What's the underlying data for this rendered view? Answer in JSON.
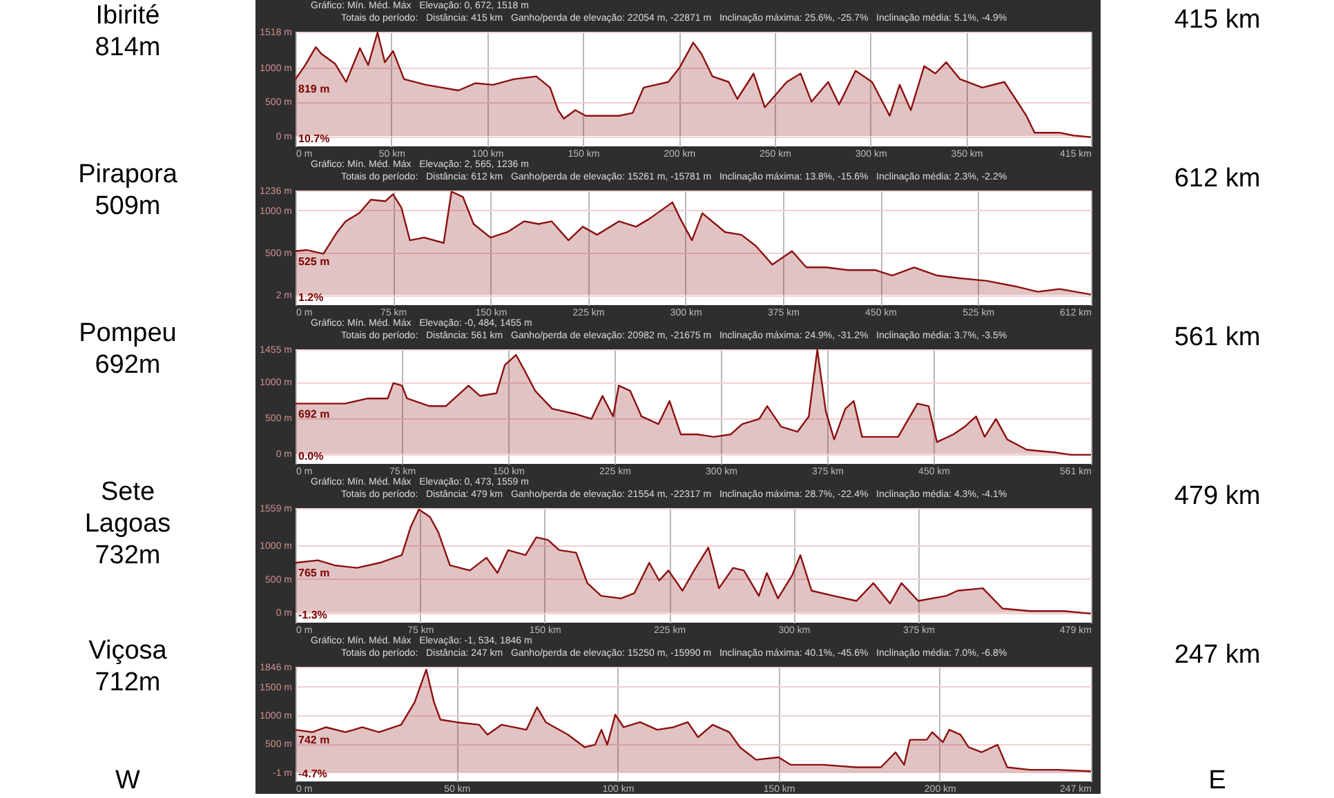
{
  "chart_data": [
    {
      "type": "area",
      "title": "Ibirité\n814m",
      "xlim": [
        0,
        415
      ],
      "ylim": [
        -150,
        1518
      ],
      "grid": true,
      "xticks": [
        {
          "value": 0,
          "label": "0 m"
        },
        {
          "value": 50,
          "label": "50 km"
        },
        {
          "value": 100,
          "label": "100 km"
        },
        {
          "value": 150,
          "label": "150 km"
        },
        {
          "value": 200,
          "label": "200 km"
        },
        {
          "value": 250,
          "label": "250 km"
        },
        {
          "value": 300,
          "label": "300 km"
        },
        {
          "value": 350,
          "label": "350 km"
        },
        {
          "value": 415,
          "label": "415 km"
        }
      ],
      "yticks": [
        {
          "value": 0,
          "label": "0 m"
        },
        {
          "value": 500,
          "label": "500 m"
        },
        {
          "value": 1000,
          "label": "1000 m"
        },
        {
          "value": 1518,
          "label": "1518 m"
        }
      ],
      "annotations": [
        "415 km",
        "Gráfico: Mín. Méd. Máx   Elevação: 0, 672, 1518 m",
        "Totais do período:   Distância: 415 km   Ganho/perda de elevação: 22054 m, -22871 m   Inclinação máxima: 25.6%, -25.7%   Inclinação média: 5.1%, -4.9%",
        "819 m",
        "10.7%"
      ],
      "series": [
        {
          "color": "#8b1010",
          "x": [
            0,
            5,
            10.6,
            13.5,
            20.7,
            26.4,
            33.6,
            37.9,
            42.8,
            46.6,
            50.9,
            56.6,
            68,
            85,
            94,
            103,
            114,
            125.6,
            132.8,
            137,
            140,
            146,
            151.4,
            168.7,
            175.9,
            181.6,
            194.5,
            200.3,
            207.5,
            211.8,
            217.5,
            226,
            230.5,
            239,
            244.8,
            256.3,
            263.5,
            269.2,
            277.9,
            283.6,
            292.2,
            300.8,
            310,
            315.2,
            321,
            328,
            333.8,
            339.5,
            346.7,
            358.3,
            369.8,
            375.6,
            381.3,
            385.6,
            398.6,
            405.8,
            415
          ],
          "values": [
            830,
            1030,
            1295,
            1197,
            1050,
            787,
            1279,
            1033,
            1508,
            1074,
            1238,
            828,
            746,
            664,
            770,
            746,
            828,
            869,
            705,
            377,
            254,
            377,
            295,
            295,
            336,
            705,
            787,
            992,
            1361,
            1197,
            869,
            787,
            541,
            910,
            418,
            787,
            910,
            500,
            787,
            459,
            951,
            787,
            295,
            746,
            377,
            1017,
            910,
            1074,
            828,
            705,
            787,
            541,
            295,
            49,
            49,
            8,
            -16
          ]
        }
      ]
    },
    {
      "type": "area",
      "title": "Pirapora\n509m",
      "xlim": [
        0,
        612
      ],
      "ylim": [
        -120,
        1236
      ],
      "grid": true,
      "xticks": [
        {
          "value": 0,
          "label": "0 m"
        },
        {
          "value": 75,
          "label": "75 km"
        },
        {
          "value": 150,
          "label": "150 km"
        },
        {
          "value": 225,
          "label": "225 km"
        },
        {
          "value": 300,
          "label": "300 km"
        },
        {
          "value": 375,
          "label": "375 km"
        },
        {
          "value": 450,
          "label": "450 km"
        },
        {
          "value": 525,
          "label": "525 km"
        },
        {
          "value": 612,
          "label": "612 km"
        }
      ],
      "yticks": [
        {
          "value": 2,
          "label": "2 m"
        },
        {
          "value": 500,
          "label": "500 m"
        },
        {
          "value": 1000,
          "label": "1000 m"
        },
        {
          "value": 1236,
          "label": "1236 m"
        }
      ],
      "annotations": [
        "612 km",
        "Gráfico: Mín. Méd. Máx   Elevação: 2, 565, 1236 m",
        "Totais do período:   Distância: 612 km   Ganho/perda de elevação: 15261 m, -15781 m   Inclinação máxima: 13.8%, -15.6%   Inclinação média: 2.3%, -2.2%",
        "525 m",
        "1.2%"
      ],
      "series": [
        {
          "color": "#8b1010",
          "x": [
            0,
            8.6,
            21.5,
            32,
            38.6,
            49,
            58,
            69,
            75,
            81.5,
            88,
            99,
            114,
            120,
            128.8,
            137,
            150,
            163,
            176,
            187,
            197,
            210,
            221,
            232,
            249,
            262,
            272.5,
            290,
            296,
            305,
            313,
            330.5,
            343,
            354,
            366.9,
            382,
            393,
            408,
            425,
            446,
            459,
            476,
            493.5,
            510.7,
            532,
            553.6,
            571,
            588,
            612
          ],
          "values": [
            519,
            532,
            487,
            744,
            872,
            968,
            1128,
            1109,
            1192,
            1032,
            647,
            679,
            615,
            1224,
            1160,
            840,
            679,
            744,
            872,
            840,
            872,
            647,
            808,
            712,
            872,
            808,
            904,
            1096,
            904,
            647,
            968,
            744,
            712,
            583,
            359,
            519,
            327,
            327,
            295,
            295,
            231,
            327,
            231,
            199,
            167,
            103,
            38,
            71,
            6
          ]
        }
      ]
    },
    {
      "type": "area",
      "title": "Pompeu\n692m",
      "xlim": [
        0,
        561
      ],
      "ylim": [
        -140,
        1455
      ],
      "grid": true,
      "xticks": [
        {
          "value": 0,
          "label": "0 m"
        },
        {
          "value": 75,
          "label": "75 km"
        },
        {
          "value": 150,
          "label": "150 km"
        },
        {
          "value": 225,
          "label": "225 km"
        },
        {
          "value": 300,
          "label": "300 km"
        },
        {
          "value": 375,
          "label": "375 km"
        },
        {
          "value": 450,
          "label": "450 km"
        },
        {
          "value": 561,
          "label": "561 km"
        }
      ],
      "yticks": [
        {
          "value": 0,
          "label": "0 m"
        },
        {
          "value": 500,
          "label": "500 m"
        },
        {
          "value": 1000,
          "label": "1000 m"
        },
        {
          "value": 1455,
          "label": "1455 m"
        }
      ],
      "annotations": [
        "561 km",
        "Gráfico: Mín. Méd. Máx   Elevação: -0, 484, 1455 m",
        "Totais do período:   Distância: 561 km   Ganho/perda de elevação: 20982 m, -21675 m   Inclinação máxima: 24.9%, -31.2%   Inclinação média: 3.7%, -3.5%",
        "692 m",
        "0.0%"
      ],
      "series": [
        {
          "color": "#8b1010",
          "x": [
            0,
            15.7,
            35,
            51,
            65,
            69,
            75,
            78.7,
            94.5,
            106,
            122,
            130,
            141.7,
            147.6,
            155.5,
            161.4,
            169,
            181,
            196.9,
            208.7,
            216.5,
            224,
            228,
            236,
            244,
            256,
            263.8,
            271.7,
            283.5,
            295,
            307,
            315,
            327,
            332.7,
            342.5,
            354,
            362,
            368,
            374,
            379.9,
            387.8,
            393.7,
            399.6,
            413.4,
            425,
            438.6,
            446.5,
            452.4,
            464,
            472,
            480,
            486,
            494,
            502,
            515.7,
            535,
            547,
            561
          ],
          "values": [
            700,
            700,
            700,
            771,
            771,
            985,
            950,
            771,
            664,
            664,
            950,
            807,
            843,
            1235,
            1378,
            1164,
            878,
            628,
            557,
            485,
            807,
            521,
            950,
            878,
            521,
            414,
            735,
            271,
            271,
            236,
            271,
            414,
            485,
            664,
            378,
            307,
            521,
            1449,
            592,
            200,
            628,
            735,
            236,
            236,
            236,
            700,
            664,
            164,
            271,
            378,
            521,
            236,
            485,
            200,
            57,
            21,
            -14,
            -14
          ]
        }
      ]
    },
    {
      "type": "area",
      "title": "Sete\nLagoas\n732m",
      "xlim": [
        0,
        479
      ],
      "ylim": [
        -150,
        1559
      ],
      "grid": true,
      "xticks": [
        {
          "value": 0,
          "label": "0 m"
        },
        {
          "value": 75,
          "label": "75 km"
        },
        {
          "value": 150,
          "label": "150 km"
        },
        {
          "value": 225,
          "label": "225 km"
        },
        {
          "value": 300,
          "label": "300 km"
        },
        {
          "value": 375,
          "label": "375 km"
        },
        {
          "value": 479,
          "label": "479 km"
        }
      ],
      "yticks": [
        {
          "value": 0,
          "label": "0 m"
        },
        {
          "value": 500,
          "label": "500 m"
        },
        {
          "value": 1000,
          "label": "1000 m"
        },
        {
          "value": 1559,
          "label": "1559 m"
        }
      ],
      "annotations": [
        "479 km",
        "Gráfico: Mín. Méd. Máx   Elevação: 0, 473, 1559 m",
        "Totais do período:   Distância: 479 km   Ganho/perda de elevação: 21554 m, -22317 m   Inclinação máxima: 28.7%, -22.4%   Inclinação média: 4.3%, -4.1%",
        "765 m",
        "-1.3%"
      ],
      "series": [
        {
          "color": "#8b1010",
          "x": [
            0,
            13.5,
            23.6,
            37,
            50.7,
            64,
            69.3,
            74.3,
            81,
            86,
            93,
            105,
            115,
            121.6,
            128,
            138.5,
            145,
            152,
            158.8,
            169,
            175.7,
            184,
            196,
            204,
            213,
            219,
            224.6,
            233,
            240,
            248.6,
            255,
            263.5,
            270,
            279,
            283.8,
            290.5,
            299,
            304,
            310.8,
            324,
            337.8,
            348,
            358,
            364.9,
            375,
            392,
            398.6,
            413.9,
            425.7,
            442.6,
            462.8,
            479
          ],
          "values": [
            743,
            781,
            705,
            667,
            743,
            857,
            1273,
            1539,
            1425,
            1198,
            705,
            629,
            819,
            591,
            932,
            857,
            1122,
            1084,
            932,
            894,
            440,
            250,
            212,
            288,
            743,
            478,
            629,
            326,
            629,
            970,
            364,
            667,
            629,
            250,
            591,
            212,
            553,
            857,
            326,
            250,
            174,
            440,
            136,
            440,
            174,
            250,
            326,
            364,
            61,
            23,
            23,
            -15
          ]
        }
      ]
    },
    {
      "type": "area",
      "title": "Viçosa\n712m",
      "xlim": [
        0,
        247
      ],
      "ylim": [
        -160,
        1846
      ],
      "grid": true,
      "xticks": [
        {
          "value": 0,
          "label": "0 m"
        },
        {
          "value": 50,
          "label": "50 km"
        },
        {
          "value": 100,
          "label": "100 km"
        },
        {
          "value": 150,
          "label": "150 km"
        },
        {
          "value": 200,
          "label": "200 km"
        },
        {
          "value": 247,
          "label": "247 km"
        }
      ],
      "yticks": [
        {
          "value": -1,
          "label": "-1 m"
        },
        {
          "value": 500,
          "label": "500 m"
        },
        {
          "value": 1000,
          "label": "1000 m"
        },
        {
          "value": 1500,
          "label": "1500 m"
        },
        {
          "value": 1846,
          "label": "1846 m"
        }
      ],
      "annotations": [
        "247 km",
        "Gráfico: Mín. Méd. Máx   Elevação: -1, 534, 1846 m",
        "Totais do período:   Distância: 247 km   Ganho/perda de elevação: 15250 m, -15990 m   Inclinação máxima: 40.1%, -45.6%   Inclinação média: 7.0%, -6.8%",
        "742 m",
        "-4.7%",
        "W",
        "E"
      ],
      "series": [
        {
          "color": "#8b1010",
          "x": [
            0,
            5.2,
            9.5,
            15.5,
            20.7,
            25.9,
            32.8,
            37,
            40.6,
            43,
            45,
            50,
            57,
            59.6,
            64,
            71.7,
            75,
            77.7,
            84.6,
            89.8,
            93,
            95,
            96.8,
            99.3,
            101.9,
            107,
            112.3,
            117.4,
            121.8,
            125,
            129.5,
            134.7,
            138,
            143,
            150,
            153.7,
            164,
            174,
            181.8,
            186.3,
            189,
            190.8,
            196,
            197.7,
            201,
            203,
            206.5,
            209,
            213,
            218,
            221,
            228,
            236.6,
            247
          ],
          "values": [
            745,
            702,
            789,
            702,
            789,
            702,
            833,
            1228,
            1798,
            1228,
            921,
            877,
            833,
            658,
            833,
            745,
            1140,
            877,
            658,
            439,
            482,
            745,
            482,
            1009,
            789,
            877,
            745,
            789,
            877,
            614,
            833,
            702,
            439,
            219,
            263,
            132,
            132,
            88,
            88,
            351,
            132,
            570,
            570,
            702,
            526,
            745,
            658,
            439,
            351,
            482,
            88,
            44,
            44,
            18
          ]
        }
      ]
    }
  ]
}
